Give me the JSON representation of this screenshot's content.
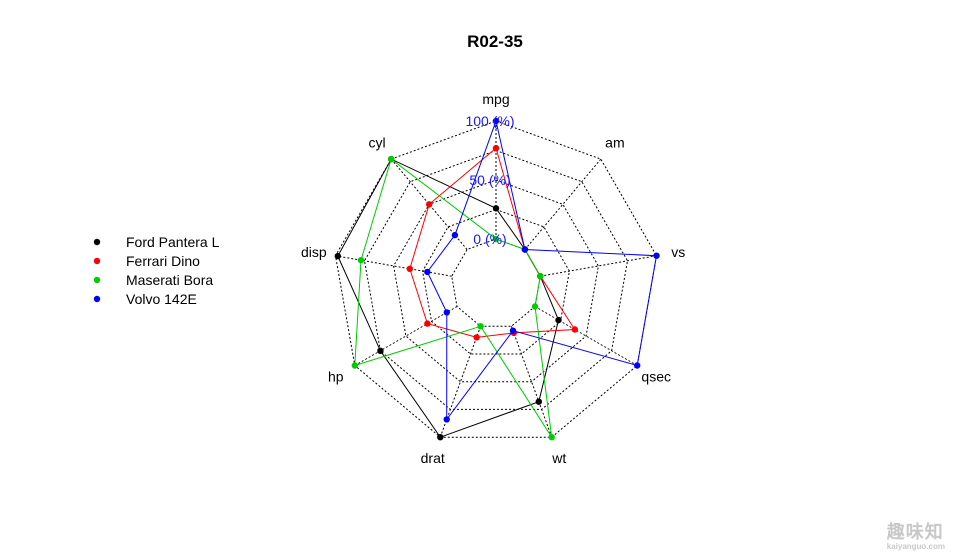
{
  "chart_data": {
    "type": "radar",
    "title": "R02-35",
    "axes": [
      "mpg",
      "am",
      "vs",
      "qsec",
      "wt",
      "drat",
      "hp",
      "disp",
      "cyl"
    ],
    "ring_labels": [
      "0 (%)",
      "50 (%)",
      "100 (%)"
    ],
    "ring_values": [
      0,
      50,
      100
    ],
    "grid": "dotted",
    "legend_position": "left",
    "series": [
      {
        "name": "Ford Pantera L",
        "color": "#000000",
        "values": [
          26,
          0,
          0,
          23,
          68,
          100,
          75,
          98,
          100
        ]
      },
      {
        "name": "Ferrari Dino",
        "color": "#ff0000",
        "values": [
          77,
          0,
          0,
          39,
          6,
          10,
          29,
          36,
          50
        ]
      },
      {
        "name": "Maserati Bora",
        "color": "#00cc00",
        "values": [
          0,
          0,
          0,
          0,
          100,
          0,
          100,
          78,
          100
        ]
      },
      {
        "name": "Volvo 142E",
        "color": "#0000ff",
        "values": [
          100,
          0,
          100,
          100,
          4,
          84,
          10,
          21,
          16
        ]
      }
    ]
  },
  "watermark": {
    "brand": "趣味知",
    "domain": "kaiyanguo.com"
  }
}
